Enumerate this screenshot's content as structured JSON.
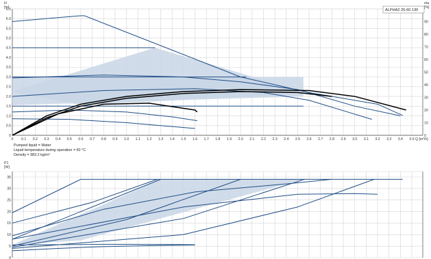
{
  "product_label": "ALPHA2 25-60 130",
  "notes": [
    "Pumped liquid = Water",
    "Liquid temperature during operation = 60 °C",
    "Density = 983.2 kg/m³"
  ],
  "chart_data": [
    {
      "type": "line",
      "title": "",
      "ylabel_lines": [
        "H",
        "[m]"
      ],
      "y2label_lines": [
        "eta",
        "[%]"
      ],
      "xlabel": "Q [m³/h]",
      "xlim": [
        0,
        3.5
      ],
      "ylim": [
        0,
        6.5
      ],
      "y2lim": [
        0,
        100
      ],
      "x_ticks": [
        "0",
        "0.1",
        "0.2",
        "0.3",
        "0.4",
        "0.5",
        "0.6",
        "0.7",
        "0.8",
        "0.9",
        "1.0",
        "1.1",
        "1.2",
        "1.3",
        "1.4",
        "1.5",
        "1.6",
        "1.7",
        "1.8",
        "1.9",
        "2.0",
        "2.1",
        "2.2",
        "2.3",
        "2.4",
        "2.5",
        "2.6",
        "2.7",
        "2.8",
        "2.9",
        "3.0",
        "3.1",
        "3.2",
        "3.3",
        "3.4",
        "3.5"
      ],
      "y_ticks": [
        "0",
        "0.5",
        "1.0",
        "1.5",
        "2.0",
        "2.5",
        "3.0",
        "3.5",
        "4.0",
        "4.5",
        "5.0",
        "5.5",
        "6.0",
        "6.5"
      ],
      "y2_ticks": [
        "0",
        "10",
        "20",
        "30",
        "40",
        "50",
        "60",
        "70",
        "80",
        "90"
      ],
      "grid": true,
      "colors": {
        "curve": "#1f4e86",
        "efficiency": "#000000",
        "fill": "#c9d6e6"
      },
      "shaded_regions": [
        {
          "points": [
            [
              0,
              2.25
            ],
            [
              1.25,
              4.5
            ],
            [
              2.6,
              2.15
            ],
            [
              0.6,
              1.55
            ]
          ]
        },
        {
          "points": [
            [
              0,
              1.55
            ],
            [
              2.55,
              2.0
            ],
            [
              2.55,
              3.0
            ],
            [
              0,
              3.0
            ]
          ]
        }
      ],
      "series": [
        {
          "kind": "head",
          "points": [
            [
              0,
              5.85
            ],
            [
              0.4,
              6.05
            ],
            [
              0.6,
              6.15
            ],
            [
              0.63,
              6.15
            ],
            [
              2.0,
              3.0
            ],
            [
              2.6,
              2.2
            ],
            [
              3.2,
              1.6
            ],
            [
              3.42,
              1.02
            ]
          ]
        },
        {
          "kind": "head",
          "points": [
            [
              0,
              4.5
            ],
            [
              1.25,
              4.5
            ]
          ]
        },
        {
          "kind": "head",
          "points": [
            [
              0,
              2.95
            ],
            [
              0.8,
              3.1
            ],
            [
              1.5,
              3.0
            ],
            [
              2.0,
              2.75
            ],
            [
              2.5,
              2.35
            ],
            [
              3.0,
              1.5
            ],
            [
              3.4,
              1.0
            ]
          ]
        },
        {
          "kind": "head",
          "points": [
            [
              0,
              3.0
            ],
            [
              2.05,
              3.0
            ]
          ]
        },
        {
          "kind": "head",
          "points": [
            [
              0,
              2.0
            ],
            [
              0.8,
              2.3
            ],
            [
              1.6,
              2.4
            ],
            [
              2.2,
              2.2
            ],
            [
              2.6,
              1.8
            ],
            [
              3.15,
              0.82
            ]
          ]
        },
        {
          "kind": "head",
          "points": [
            [
              0,
              1.5
            ],
            [
              2.55,
              1.5
            ]
          ]
        },
        {
          "kind": "head",
          "points": [
            [
              0,
              1.2
            ],
            [
              0.5,
              1.3
            ],
            [
              1.0,
              1.2
            ],
            [
              1.4,
              0.95
            ],
            [
              1.62,
              0.75
            ]
          ]
        },
        {
          "kind": "head",
          "points": [
            [
              0,
              0.85
            ],
            [
              0.5,
              0.82
            ],
            [
              1.0,
              0.65
            ],
            [
              1.4,
              0.45
            ],
            [
              1.6,
              0.35
            ]
          ]
        },
        {
          "kind": "eff",
          "points": [
            [
              0,
              0.0
            ],
            [
              0.3,
              1.0
            ],
            [
              0.6,
              1.6
            ],
            [
              1.0,
              2.0
            ],
            [
              1.5,
              2.25
            ],
            [
              2.0,
              2.35
            ],
            [
              2.6,
              2.3
            ],
            [
              3.0,
              2.0
            ],
            [
              3.45,
              1.3
            ]
          ]
        },
        {
          "kind": "eff",
          "points": [
            [
              0,
              0.0
            ],
            [
              0.3,
              0.9
            ],
            [
              0.6,
              1.5
            ],
            [
              1.0,
              1.9
            ],
            [
              1.5,
              2.15
            ],
            [
              2.0,
              2.25
            ],
            [
              2.5,
              2.2
            ],
            [
              2.8,
              2.0
            ]
          ]
        },
        {
          "kind": "eff",
          "points": [
            [
              0,
              0.0
            ],
            [
              0.4,
              1.1
            ],
            [
              0.8,
              1.6
            ],
            [
              1.2,
              1.65
            ],
            [
              1.6,
              1.3
            ],
            [
              1.62,
              1.2
            ]
          ]
        }
      ]
    },
    {
      "type": "line",
      "title": "",
      "ylabel_lines": [
        "P1",
        "[W]"
      ],
      "xlim": [
        0,
        3.5
      ],
      "ylim": [
        0,
        35
      ],
      "y_ticks": [
        "0",
        "5",
        "10",
        "15",
        "20",
        "25",
        "30",
        "35"
      ],
      "grid": true,
      "colors": {
        "curve": "#1f4e86",
        "fill": "#c9d6e6"
      },
      "shaded_regions": [
        {
          "points": [
            [
              0.2,
              10.0
            ],
            [
              1.3,
              34.0
            ],
            [
              2.55,
              34.0
            ],
            [
              0.6,
              7.5
            ],
            [
              0.0,
              5.5
            ]
          ]
        }
      ],
      "series": [
        {
          "points": [
            [
              0,
              19.5
            ],
            [
              0.6,
              34.0
            ],
            [
              3.42,
              34.0
            ]
          ]
        },
        {
          "points": [
            [
              0,
              15.0
            ],
            [
              0.7,
              24.0
            ],
            [
              1.27,
              34.0
            ]
          ]
        },
        {
          "points": [
            [
              0,
              9.5
            ],
            [
              0.8,
              21.0
            ],
            [
              1.6,
              28.5
            ],
            [
              2.4,
              32.0
            ],
            [
              2.8,
              34.0
            ]
          ]
        },
        {
          "points": [
            [
              0,
              8.0
            ],
            [
              1.3,
              34.0
            ]
          ]
        },
        {
          "points": [
            [
              0,
              5.0
            ],
            [
              1.0,
              16.5
            ],
            [
              2.0,
              34.0
            ]
          ]
        },
        {
          "points": [
            [
              0,
              4.5
            ],
            [
              1.5,
              17.0
            ],
            [
              2.56,
              34.0
            ]
          ]
        },
        {
          "points": [
            [
              0,
              4.0
            ],
            [
              1.5,
              10.0
            ],
            [
              2.5,
              22.0
            ],
            [
              3.17,
              34.0
            ]
          ]
        },
        {
          "points": [
            [
              0,
              8.0
            ],
            [
              1.5,
              22.0
            ],
            [
              2.5,
              27.5
            ],
            [
              3.0,
              27.8
            ],
            [
              3.2,
              27.5
            ]
          ]
        },
        {
          "points": [
            [
              0,
              5.5
            ],
            [
              0.8,
              5.8
            ],
            [
              1.4,
              5.7
            ],
            [
              1.6,
              5.6
            ]
          ]
        },
        {
          "points": [
            [
              0,
              3.0
            ],
            [
              0.4,
              4.0
            ],
            [
              0.8,
              4.8
            ],
            [
              1.2,
              5.2
            ],
            [
              1.6,
              5.5
            ]
          ]
        }
      ]
    }
  ]
}
